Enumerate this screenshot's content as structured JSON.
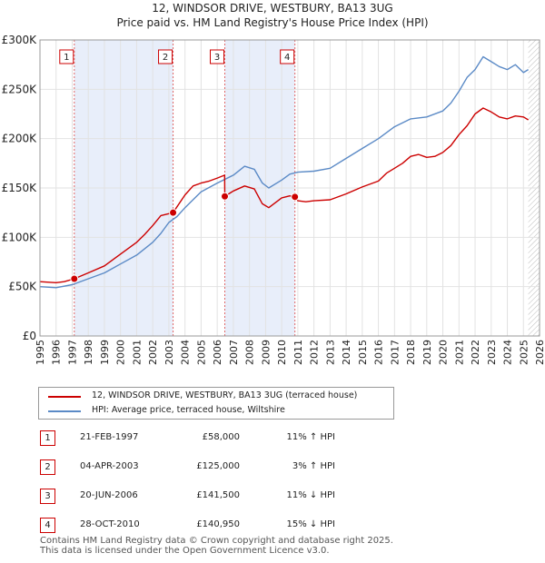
{
  "chart_data": {
    "type": "line",
    "title": "12, WINDSOR DRIVE, WESTBURY, BA13 3UG",
    "subtitle": "Price paid vs. HM Land Registry's House Price Index (HPI)",
    "xlabel": "",
    "ylabel": "",
    "xlim": [
      1995,
      2026
    ],
    "ylim": [
      0,
      300000
    ],
    "y_ticks": [
      0,
      50000,
      100000,
      150000,
      200000,
      250000,
      300000
    ],
    "y_tick_labels": [
      "£0",
      "£50K",
      "£100K",
      "£150K",
      "£200K",
      "£250K",
      "£300K"
    ],
    "x_ticks": [
      1995,
      1996,
      1997,
      1998,
      1999,
      2000,
      2001,
      2002,
      2003,
      2004,
      2005,
      2006,
      2007,
      2008,
      2009,
      2010,
      2011,
      2012,
      2013,
      2014,
      2015,
      2016,
      2017,
      2018,
      2019,
      2020,
      2021,
      2022,
      2023,
      2024,
      2025,
      2026
    ],
    "grid": true,
    "series": [
      {
        "name": "12, WINDSOR DRIVE, WESTBURY, BA13 3UG (terraced house)",
        "color": "#cc0000",
        "x": [
          1995.0,
          1996.0,
          1996.5,
          1997.13,
          1998.0,
          1999.0,
          2000.0,
          2000.5,
          2001.0,
          2001.5,
          2002.0,
          2002.5,
          2003.26,
          2004.0,
          2004.5,
          2005.0,
          2005.5,
          2006.0,
          2006.46,
          2006.47,
          2007.0,
          2007.7,
          2008.3,
          2008.8,
          2009.2,
          2009.6,
          2010.0,
          2010.5,
          2010.82,
          2011.0,
          2011.5,
          2012.0,
          2013.0,
          2014.0,
          2015.0,
          2016.0,
          2016.5,
          2017.0,
          2017.5,
          2018.0,
          2018.5,
          2019.0,
          2019.5,
          2020.0,
          2020.5,
          2021.0,
          2021.5,
          2022.0,
          2022.5,
          2023.0,
          2023.5,
          2024.0,
          2024.5,
          2025.0,
          2025.3
        ],
        "values": [
          55000,
          54000,
          55000,
          58000,
          64000,
          71000,
          83000,
          89000,
          95000,
          103000,
          112000,
          122000,
          125000,
          143000,
          152000,
          155000,
          157000,
          160000,
          163000,
          141500,
          147000,
          152000,
          149000,
          134000,
          130000,
          135000,
          140000,
          142000,
          140950,
          137000,
          136000,
          137000,
          138000,
          144000,
          151000,
          157000,
          165000,
          170000,
          175000,
          182000,
          184000,
          181000,
          182000,
          186000,
          193000,
          204000,
          213000,
          225000,
          231000,
          227000,
          222000,
          220000,
          223000,
          222000,
          219000
        ]
      },
      {
        "name": "HPI: Average price, terraced house, Wiltshire",
        "color": "#5b8ac6",
        "x": [
          1995.0,
          1996.0,
          1997.0,
          1998.0,
          1999.0,
          2000.0,
          2001.0,
          2002.0,
          2002.5,
          2003.0,
          2003.5,
          2004.0,
          2004.5,
          2005.0,
          2006.0,
          2007.0,
          2007.7,
          2008.3,
          2008.8,
          2009.2,
          2010.0,
          2010.5,
          2011.0,
          2012.0,
          2013.0,
          2014.0,
          2015.0,
          2016.0,
          2017.0,
          2018.0,
          2019.0,
          2020.0,
          2020.5,
          2021.0,
          2021.5,
          2022.0,
          2022.5,
          2023.0,
          2023.5,
          2024.0,
          2024.5,
          2025.0,
          2025.3
        ],
        "values": [
          50000,
          49000,
          52000,
          58000,
          64000,
          73000,
          82000,
          95000,
          104000,
          115000,
          121000,
          130000,
          138000,
          146000,
          155000,
          163000,
          172000,
          169000,
          155000,
          150000,
          158000,
          164000,
          166000,
          167000,
          170000,
          180000,
          190000,
          200000,
          212000,
          220000,
          222000,
          228000,
          236000,
          248000,
          262000,
          270000,
          283000,
          278000,
          273000,
          270000,
          275000,
          267000,
          270000
        ]
      }
    ],
    "sale_markers": [
      {
        "label": "1",
        "x": 1997.13,
        "value": 58000
      },
      {
        "label": "2",
        "x": 2003.26,
        "value": 125000
      },
      {
        "label": "3",
        "x": 2006.47,
        "value": 141500
      },
      {
        "label": "4",
        "x": 2010.82,
        "value": 140950
      }
    ],
    "shaded_periods": [
      {
        "from": 1997.13,
        "to": 2003.26
      },
      {
        "from": 2006.47,
        "to": 2010.82
      }
    ],
    "hatched_from": 2025.3
  },
  "legend": {
    "items": [
      {
        "label": "12, WINDSOR DRIVE, WESTBURY, BA13 3UG (terraced house)",
        "color": "#cc0000"
      },
      {
        "label": "HPI: Average price, terraced house, Wiltshire",
        "color": "#5b8ac6"
      }
    ]
  },
  "sales": [
    {
      "num": "1",
      "date": "21-FEB-1997",
      "price": "£58,000",
      "hpi": "11% ↑ HPI"
    },
    {
      "num": "2",
      "date": "04-APR-2003",
      "price": "£125,000",
      "hpi": "3% ↑ HPI"
    },
    {
      "num": "3",
      "date": "20-JUN-2006",
      "price": "£141,500",
      "hpi": "11% ↓ HPI"
    },
    {
      "num": "4",
      "date": "28-OCT-2010",
      "price": "£140,950",
      "hpi": "15% ↓ HPI"
    }
  ],
  "footer": {
    "line1": "Contains HM Land Registry data © Crown copyright and database right 2025.",
    "line2": "This data is licensed under the Open Government Licence v3.0."
  }
}
